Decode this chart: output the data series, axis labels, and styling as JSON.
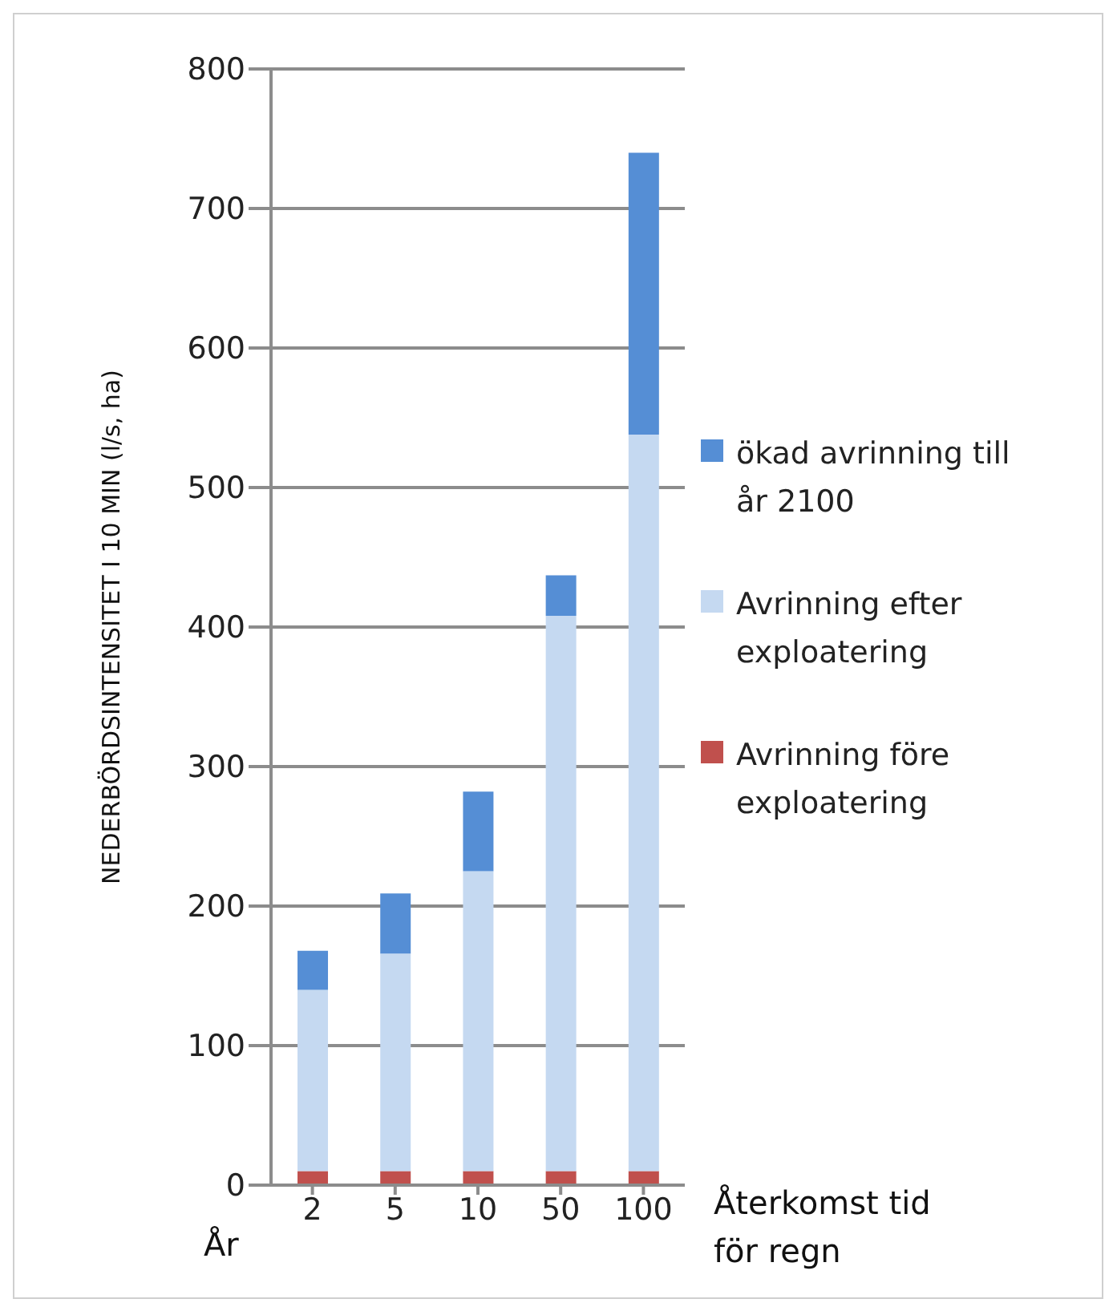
{
  "chart_data": {
    "type": "bar",
    "stacked": true,
    "ylabel": "NEDERBÖRDSINTENSITET I 10 MIN (l/s, ha)",
    "xlabel": "Återkomst tid för regn",
    "annotations": [
      "År"
    ],
    "categories": [
      "2",
      "5",
      "10",
      "50",
      "100"
    ],
    "series": [
      {
        "name": "Avrinning före exploatering",
        "color": "#c0504d",
        "values": [
          10,
          10,
          10,
          10,
          10
        ]
      },
      {
        "name": "Avrinning efter exploatering",
        "color": "#c5d9f1",
        "values": [
          130,
          156,
          215,
          398,
          528
        ]
      },
      {
        "name": "ökad avrinning till år 2100",
        "color": "#558ed5",
        "values": [
          28,
          43,
          57,
          29,
          202
        ]
      }
    ],
    "ylim": [
      0,
      800
    ],
    "yticks": [
      0,
      100,
      200,
      300,
      400,
      500,
      600,
      700,
      800
    ],
    "grid": "y",
    "legend": "right"
  }
}
